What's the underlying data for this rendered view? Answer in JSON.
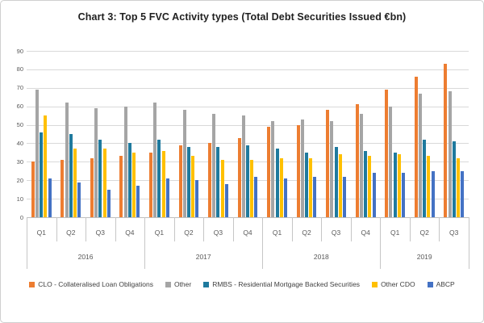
{
  "title": "Chart 3: Top 5 FVC Activity types (Total Debt Securities Issued €bn)",
  "chart_data": {
    "type": "bar",
    "title": "Chart 3: Top 5 FVC Activity types (Total Debt Securities Issued €bn)",
    "categories": [
      "Q1",
      "Q2",
      "Q3",
      "Q4",
      "Q1",
      "Q2",
      "Q3",
      "Q4",
      "Q1",
      "Q2",
      "Q3",
      "Q4",
      "Q1",
      "Q2",
      "Q3"
    ],
    "year_groups": [
      {
        "label": "2016",
        "quarters": 4
      },
      {
        "label": "2017",
        "quarters": 4
      },
      {
        "label": "2018",
        "quarters": 4
      },
      {
        "label": "2019",
        "quarters": 3
      }
    ],
    "series": [
      {
        "name": "CLO - Collateralised Loan Obligations",
        "color": "#ED7D31",
        "values": [
          30,
          31,
          32,
          33,
          35,
          39,
          40,
          43,
          49,
          50,
          58,
          61,
          69,
          76,
          83
        ]
      },
      {
        "name": "Other",
        "color": "#A5A5A5",
        "values": [
          69,
          62,
          59,
          60,
          62,
          58,
          56,
          55,
          52,
          53,
          52,
          56,
          60,
          67,
          68
        ]
      },
      {
        "name": "RMBS - Residential Mortgage Backed Securities",
        "color": "#1F7A9E",
        "values": [
          46,
          45,
          42,
          40,
          42,
          38,
          38,
          39,
          37,
          35,
          38,
          36,
          35,
          42,
          41
        ]
      },
      {
        "name": "Other CDO",
        "color": "#FFC000",
        "values": [
          55,
          37,
          37,
          35,
          36,
          33,
          31,
          31,
          32,
          32,
          34,
          33,
          34,
          33,
          32
        ]
      },
      {
        "name": "ABCP",
        "color": "#4472C4",
        "values": [
          21,
          19,
          15,
          17,
          21,
          20,
          18,
          22,
          21,
          22,
          22,
          24,
          24,
          25,
          25
        ]
      }
    ],
    "ylim": [
      0,
      90
    ],
    "ytick_step": 10,
    "grid": true,
    "legend_position": "bottom",
    "colors": {
      "grid": "#d9d9d9",
      "axis": "#bfbfbf",
      "tick_text": "#595959",
      "title_text": "#1f1f1f"
    }
  }
}
